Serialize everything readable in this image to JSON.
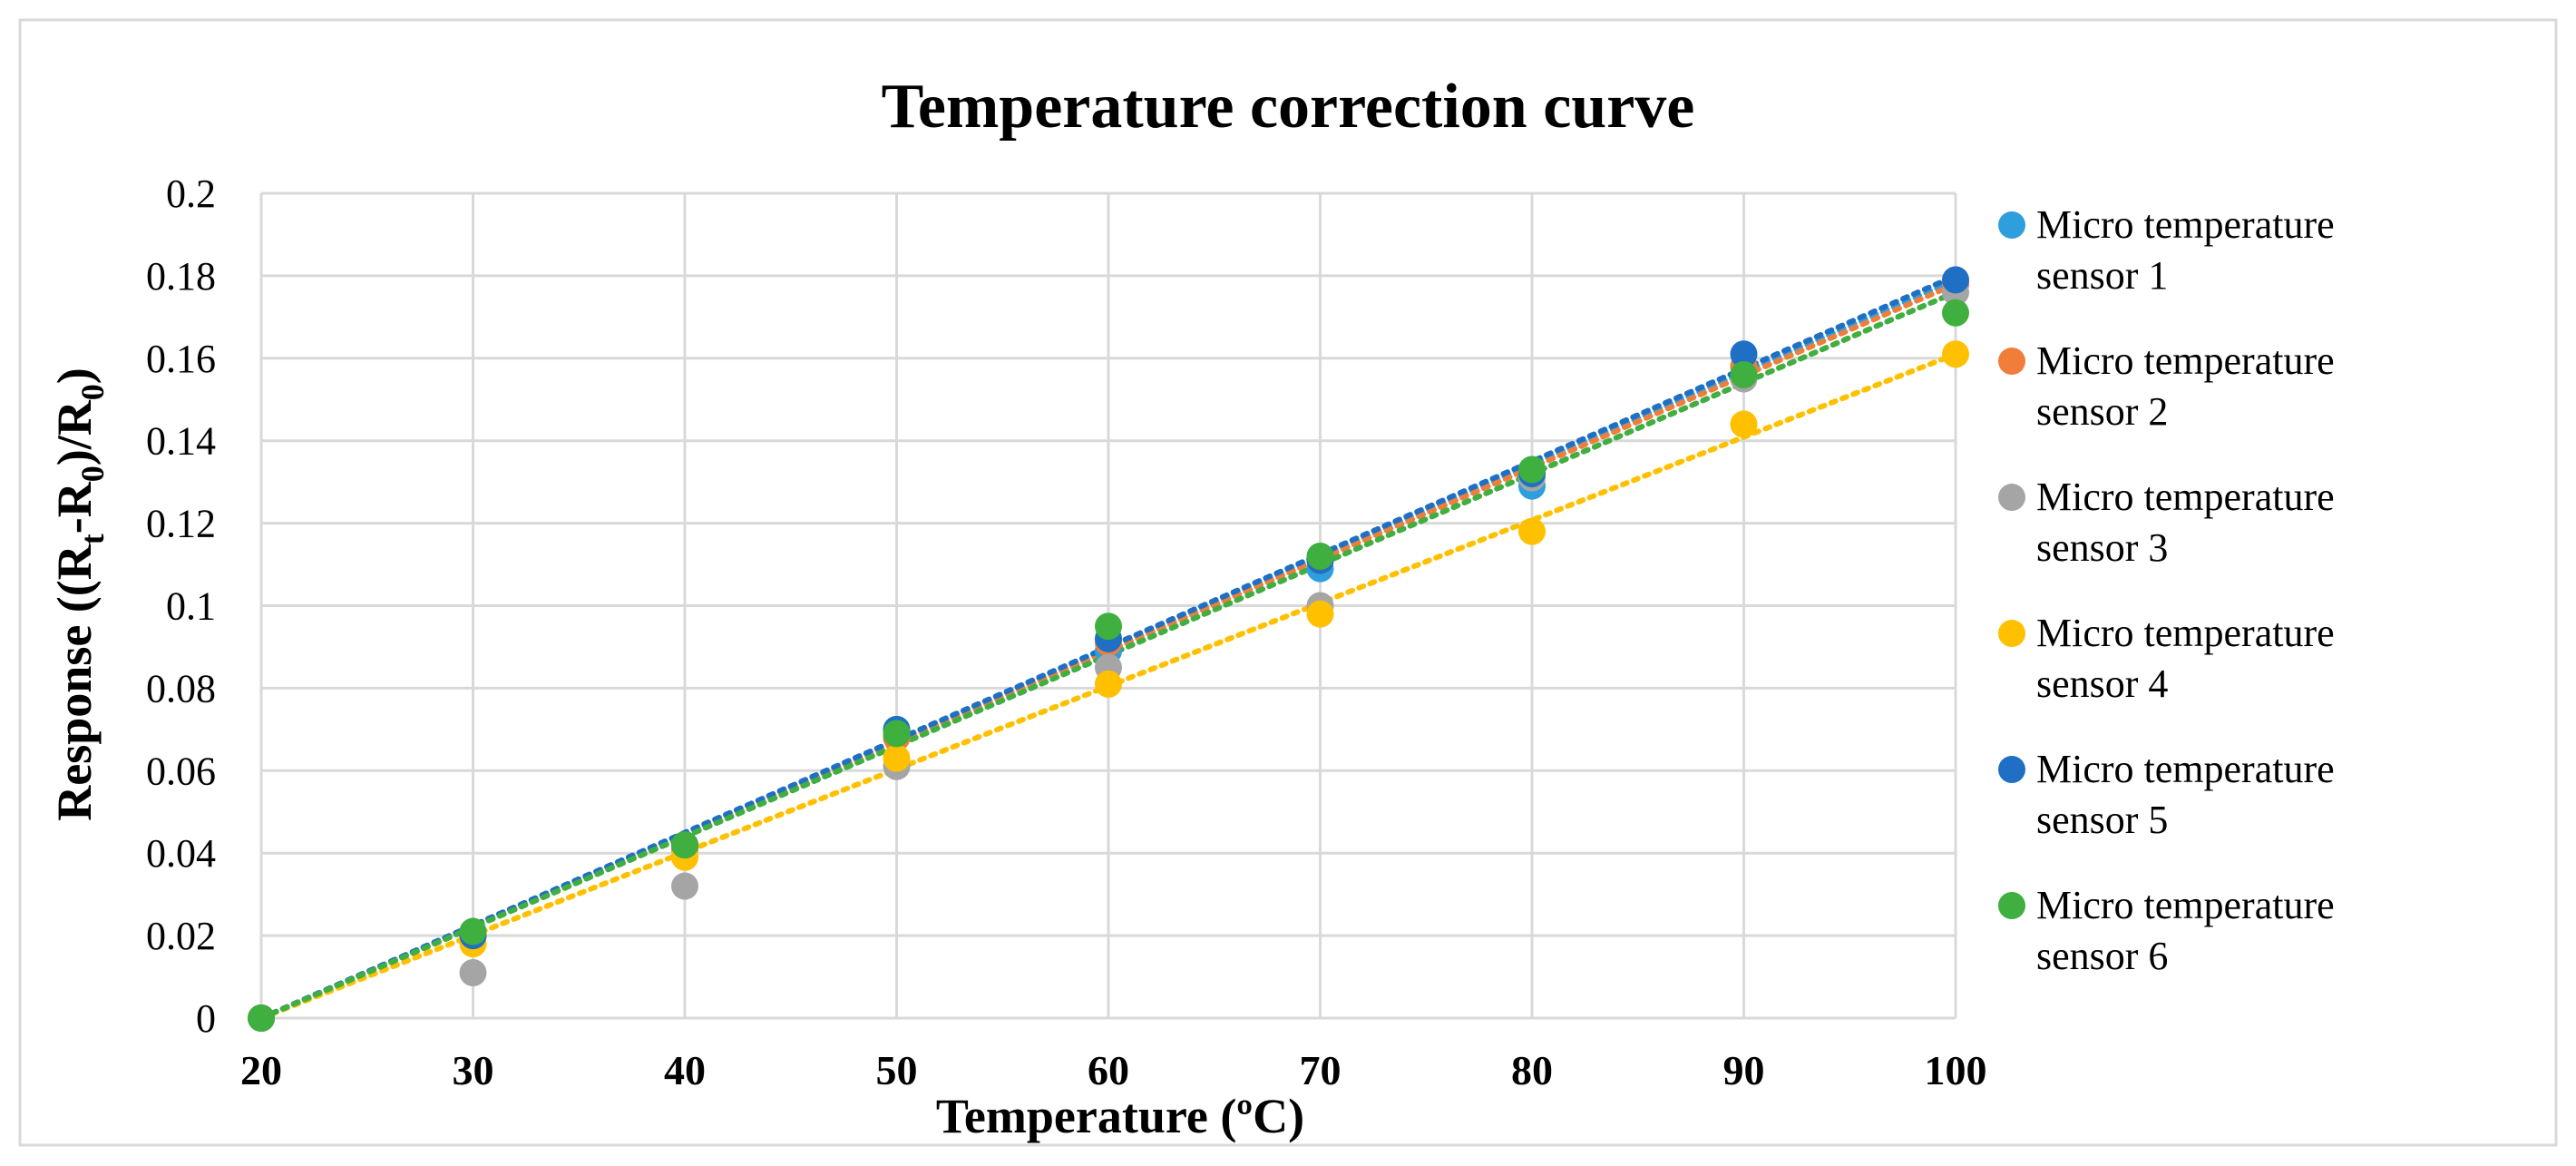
{
  "chart_data": {
    "type": "scatter",
    "title": "Temperature correction curve",
    "xlabel": "Temperature (ºC)",
    "ylabel": {
      "prefix": "Response ((R",
      "sub1": "t",
      "mid": "-R",
      "sub2": "0",
      "mid2": ")/R",
      "sub3": "0",
      "suffix": ")"
    },
    "xlim": [
      20,
      100
    ],
    "ylim": [
      0,
      0.2
    ],
    "x_ticks": [
      20,
      30,
      40,
      50,
      60,
      70,
      80,
      90,
      100
    ],
    "x_tick_labels": [
      "20",
      "30",
      "40",
      "50",
      "60",
      "70",
      "80",
      "90",
      "100"
    ],
    "y_ticks": [
      0,
      0.02,
      0.04,
      0.06,
      0.08,
      0.1,
      0.12,
      0.14,
      0.16,
      0.18,
      0.2
    ],
    "y_tick_labels": [
      "0",
      "0.02",
      "0.04",
      "0.06",
      "0.08",
      "0.1",
      "0.12",
      "0.14",
      "0.16",
      "0.18",
      "0.2"
    ],
    "grid": true,
    "legend_position": "right",
    "x": [
      20,
      30,
      40,
      50,
      60,
      70,
      80,
      90,
      100
    ],
    "series": [
      {
        "name": "Micro temperature sensor 1",
        "legend_lines": [
          "Micro temperature",
          "sensor 1"
        ],
        "color": "#2E9FDC",
        "values": [
          0,
          0.02,
          0.042,
          0.068,
          0.089,
          0.109,
          0.129,
          0.158,
          0.178
        ],
        "trendline": [
          0,
          0.179
        ]
      },
      {
        "name": "Micro temperature sensor 2",
        "legend_lines": [
          "Micro temperature",
          "sensor 2"
        ],
        "color": "#F07D3A",
        "values": [
          0,
          0.02,
          0.041,
          0.068,
          0.091,
          0.111,
          0.132,
          0.158,
          0.178
        ],
        "trendline": [
          0,
          0.178
        ]
      },
      {
        "name": "Micro temperature sensor 3",
        "legend_lines": [
          "Micro temperature",
          "sensor 3"
        ],
        "color": "#A5A5A5",
        "values": [
          0,
          0.011,
          0.032,
          0.061,
          0.085,
          0.1,
          0.131,
          0.155,
          0.176
        ],
        "trendline": [
          0,
          0.176
        ]
      },
      {
        "name": "Micro temperature sensor 4",
        "legend_lines": [
          "Micro temperature",
          "sensor 4"
        ],
        "color": "#FFC000",
        "values": [
          0,
          0.018,
          0.039,
          0.063,
          0.081,
          0.098,
          0.118,
          0.144,
          0.161
        ],
        "trendline": [
          0,
          0.161
        ]
      },
      {
        "name": "Micro temperature sensor 5",
        "legend_lines": [
          "Micro temperature",
          "sensor 5"
        ],
        "color": "#1F6FC4",
        "values": [
          0,
          0.02,
          0.042,
          0.07,
          0.092,
          0.111,
          0.132,
          0.161,
          0.179
        ],
        "trendline": [
          0,
          0.18
        ]
      },
      {
        "name": "Micro temperature sensor 6",
        "legend_lines": [
          "Micro temperature",
          "sensor 6"
        ],
        "color": "#3FAF3F",
        "values": [
          0,
          0.021,
          0.042,
          0.069,
          0.095,
          0.112,
          0.133,
          0.156,
          0.171
        ],
        "trendline": [
          0,
          0.176
        ]
      }
    ]
  }
}
